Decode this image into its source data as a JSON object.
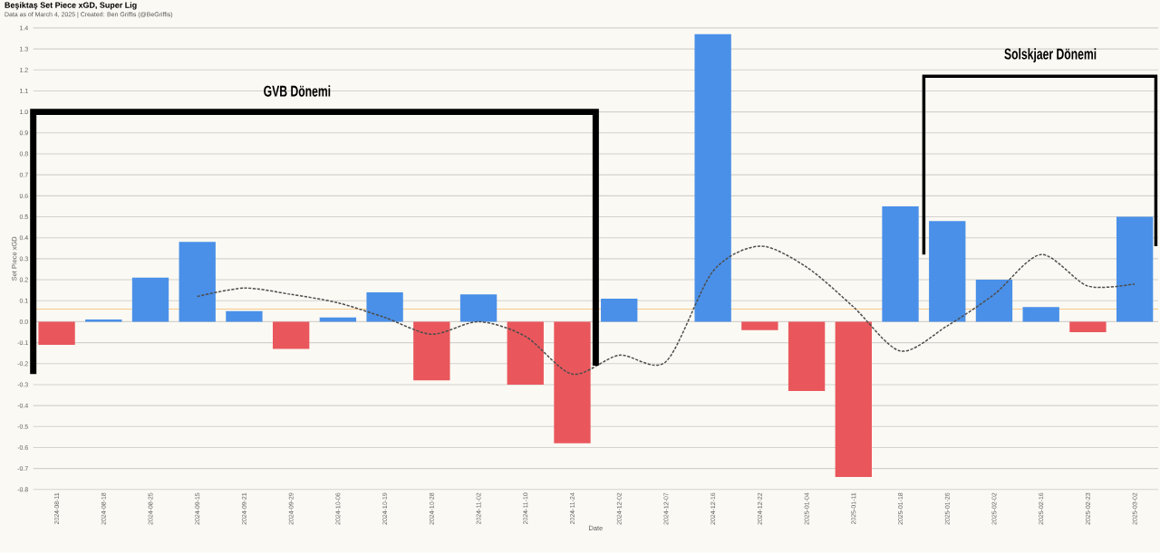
{
  "chart_data": {
    "type": "bar",
    "title": "Beşiktaş Set Piece xGD, Super Lig",
    "subtitle": "Data as of March 4, 2025 | Created: Ben Griffis (@BeGriffis)",
    "xlabel": "Date",
    "ylabel": "Set Piece xGD",
    "categories": [
      "2024-08-11",
      "2024-08-18",
      "2024-08-25",
      "2024-09-15",
      "2024-09-21",
      "2024-09-29",
      "2024-10-06",
      "2024-10-19",
      "2024-10-28",
      "2024-11-02",
      "2024-11-10",
      "2024-11-24",
      "2024-12-02",
      "2024-12-07",
      "2024-12-16",
      "2024-12-22",
      "2025-01-04",
      "2025-01-11",
      "2025-01-18",
      "2025-01-26",
      "2025-02-02",
      "2025-02-16",
      "2025-02-23",
      "2025-03-02"
    ],
    "series": [
      {
        "values": [
          -0.11,
          0.01,
          0.21,
          0.38,
          0.05,
          -0.13,
          0.02,
          0.14,
          -0.28,
          0.13,
          -0.3,
          -0.58,
          0.11,
          null,
          1.37,
          -0.04,
          -0.33,
          -0.74,
          0.55,
          0.48,
          0.2,
          0.07,
          -0.05,
          0.5
        ],
        "colors": [
          "#e9575c",
          "#4a90e8",
          "#4a90e8",
          "#4a90e8",
          "#4a90e8",
          "#e9575c",
          "#4a90e8",
          "#4a90e8",
          "#e9575c",
          "#4a90e8",
          "#e9575c",
          "#e9575c",
          "#4a90e8",
          "#4a90e8",
          "#4a90e8",
          "#e9575c",
          "#e9575c",
          "#e9575c",
          "#4a90e8",
          "#4a90e8",
          "#4a90e8",
          "#4a90e8",
          "#e9575c",
          "#4a90e8"
        ]
      },
      {
        "type": "line",
        "color": "#4d4d4d",
        "values": [
          null,
          null,
          null,
          0.12,
          0.16,
          0.13,
          0.09,
          0.02,
          -0.06,
          0.0,
          -0.07,
          -0.25,
          -0.16,
          -0.19,
          0.24,
          0.36,
          0.26,
          0.07,
          -0.14,
          -0.02,
          0.13,
          0.32,
          0.17,
          0.18
        ]
      }
    ],
    "line_style": "dashed",
    "grid": "y",
    "ylim": [
      -0.8,
      1.4
    ],
    "yticks": [
      -0.8,
      -0.7,
      -0.6,
      -0.5,
      -0.4,
      -0.3,
      -0.2,
      -0.1,
      {
        "value": 0,
        "label": "0.0"
      },
      0.1,
      0.2,
      0.3,
      0.4,
      0.5,
      0.6,
      0.7,
      0.8,
      0.9,
      {
        "value": 1,
        "label": "1.0"
      },
      1.1,
      1.2,
      1.3,
      1.4
    ],
    "ref_lines": [
      {
        "axis": "y",
        "value": 0.06,
        "color": "#f7c27d"
      }
    ],
    "annotations": [
      "GVB Dönemi",
      "Solskjaer Dönemi"
    ]
  }
}
